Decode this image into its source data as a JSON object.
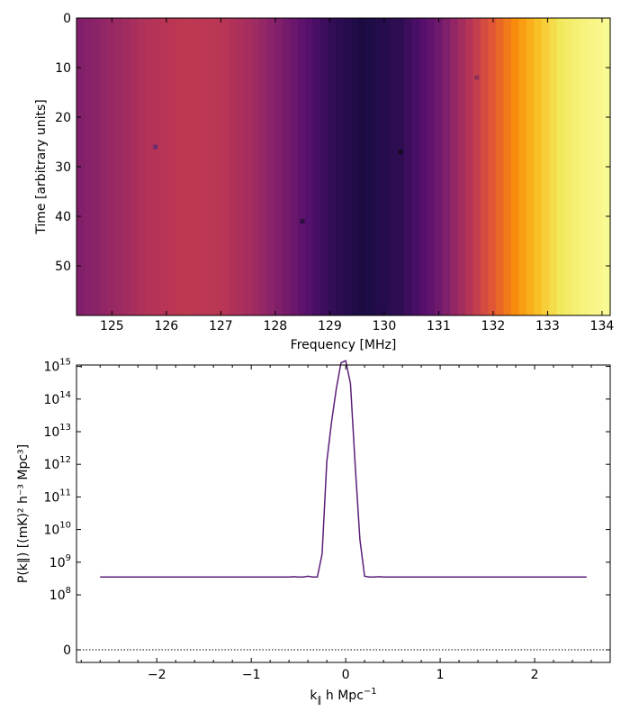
{
  "chart_data": [
    {
      "type": "heatmap",
      "title": "",
      "xlabel": "Frequency [MHz]",
      "ylabel": "Time [arbitrary units]",
      "xlim": [
        124.35,
        134.15
      ],
      "ylim": [
        60,
        0
      ],
      "colormap": "inferno",
      "xticks": [
        125,
        126,
        127,
        128,
        129,
        130,
        131,
        132,
        133,
        134
      ],
      "yticks": [
        0,
        10,
        20,
        30,
        40,
        50
      ],
      "n_channels": 70,
      "n_times": 60,
      "color_profile": [
        {
          "f": 124.35,
          "v": 0.28
        },
        {
          "f": 125.0,
          "v": 0.33
        },
        {
          "f": 125.6,
          "v": 0.38
        },
        {
          "f": 126.3,
          "v": 0.41
        },
        {
          "f": 127.0,
          "v": 0.4
        },
        {
          "f": 127.6,
          "v": 0.35
        },
        {
          "f": 128.3,
          "v": 0.25
        },
        {
          "f": 129.0,
          "v": 0.14
        },
        {
          "f": 129.6,
          "v": 0.09
        },
        {
          "f": 130.3,
          "v": 0.13
        },
        {
          "f": 131.0,
          "v": 0.25
        },
        {
          "f": 131.6,
          "v": 0.4
        },
        {
          "f": 132.2,
          "v": 0.55
        },
        {
          "f": 132.9,
          "v": 0.72
        },
        {
          "f": 133.5,
          "v": 0.86
        },
        {
          "f": 134.15,
          "v": 0.97
        }
      ],
      "flagged_pixels": [
        {
          "x": 125.8,
          "y": 26,
          "color": "#6b2a6e"
        },
        {
          "x": 128.5,
          "y": 41,
          "color": "#2b0f3e"
        },
        {
          "x": 130.3,
          "y": 27,
          "color": "#150a24"
        },
        {
          "x": 131.7,
          "y": 12,
          "color": "#8e3059"
        }
      ]
    },
    {
      "type": "line",
      "title": "",
      "xlabel": "k",
      "xlabel_sub": "∥",
      "xlabel_rest": " h Mpc",
      "xlabel_sup": "−1",
      "ylabel": "P(k∥) [(mK)² h⁻³ Mpc³]",
      "xlim": [
        -2.85,
        2.8
      ],
      "yscale": "symlog",
      "linthresh": 100000000.0,
      "xticks": [
        -2,
        -1,
        0,
        1,
        2
      ],
      "xtick_labels": [
        "−2",
        "−1",
        "0",
        "1",
        "2"
      ],
      "ytick_labels": [
        {
          "value": 0,
          "label": "0"
        },
        {
          "value": 100000000.0,
          "label": "10",
          "exp": "8"
        },
        {
          "value": 1000000000.0,
          "label": "10",
          "exp": "9"
        },
        {
          "value": 10000000000.0,
          "label": "10",
          "exp": "10"
        },
        {
          "value": 100000000000.0,
          "label": "10",
          "exp": "11"
        },
        {
          "value": 1000000000000.0,
          "label": "10",
          "exp": "12"
        },
        {
          "value": 10000000000000.0,
          "label": "10",
          "exp": "13"
        },
        {
          "value": 100000000000000.0,
          "label": "10",
          "exp": "14"
        },
        {
          "value": 1000000000000000.0,
          "label": "10",
          "exp": "15"
        }
      ],
      "zero_line": true,
      "line_color": "#5b1f78",
      "series": [
        {
          "x": [
            -2.6,
            -0.6,
            -0.55,
            -0.5,
            -0.45,
            -0.4,
            -0.35,
            -0.3,
            -0.25,
            -0.2,
            -0.15,
            -0.1,
            -0.05,
            0.0,
            0.05,
            0.1,
            0.15,
            0.2,
            0.25,
            0.3,
            0.35,
            0.4,
            0.45,
            2.55
          ],
          "y": [
            350000000.0,
            350000000.0,
            360000000.0,
            350000000.0,
            350000000.0,
            370000000.0,
            350000000.0,
            350000000.0,
            1800000000.0,
            1200000000000.0,
            20000000000000.0,
            200000000000000.0,
            1300000000000000.0,
            1500000000000000.0,
            300000000000000.0,
            1000000000000.0,
            5000000000.0,
            370000000.0,
            350000000.0,
            350000000.0,
            360000000.0,
            350000000.0,
            350000000.0,
            350000000.0
          ]
        }
      ]
    }
  ]
}
